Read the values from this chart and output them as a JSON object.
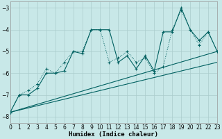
{
  "bg_color": "#c8e8e8",
  "grid_color": "#aacccc",
  "line_color": "#006060",
  "xlabel": "Humidex (Indice chaleur)",
  "xlim": [
    0,
    23
  ],
  "ylim": [
    -8.3,
    -2.7
  ],
  "yticks": [
    -8,
    -7,
    -6,
    -5,
    -4,
    -3
  ],
  "xticks": [
    0,
    1,
    2,
    3,
    4,
    5,
    6,
    7,
    8,
    9,
    10,
    11,
    12,
    13,
    14,
    15,
    16,
    17,
    18,
    19,
    20,
    21,
    22,
    23
  ],
  "s1x": [
    0,
    1,
    2,
    3,
    4,
    5,
    6,
    7,
    8,
    9,
    10,
    11,
    12,
    13,
    14,
    15,
    16,
    17,
    18,
    19,
    20,
    21,
    22,
    23
  ],
  "s1y": [
    -7.8,
    -7.0,
    -6.8,
    -6.5,
    -5.8,
    -6.0,
    -5.5,
    -5.0,
    -5.0,
    -4.0,
    -4.0,
    -5.5,
    -5.3,
    -5.0,
    -5.5,
    -5.3,
    -6.0,
    -5.7,
    -4.0,
    -3.1,
    -4.0,
    -4.7,
    -4.1,
    -5.0
  ],
  "s2x": [
    0,
    1,
    2,
    3,
    4,
    5,
    6,
    7,
    8,
    9,
    10,
    11,
    12,
    13,
    14,
    15,
    16,
    17,
    18,
    19,
    20,
    21,
    22,
    23
  ],
  "s2y": [
    -7.8,
    -7.0,
    -7.0,
    -6.7,
    -6.0,
    -6.0,
    -5.9,
    -5.0,
    -5.1,
    -4.0,
    -4.0,
    -4.0,
    -5.5,
    -5.2,
    -5.8,
    -5.2,
    -5.9,
    -4.1,
    -4.1,
    -3.0,
    -4.0,
    -4.5,
    -4.1,
    -5.0
  ],
  "trend1x": [
    0,
    23
  ],
  "trend1y": [
    -7.8,
    -5.0
  ],
  "trend2x": [
    0,
    23
  ],
  "trend2y": [
    -7.8,
    -5.5
  ]
}
